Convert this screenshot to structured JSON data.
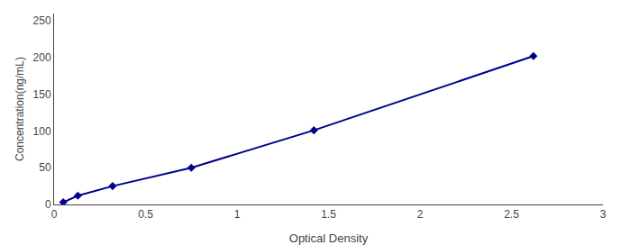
{
  "chart_data": {
    "type": "line",
    "x": [
      0.05,
      0.13,
      0.32,
      0.75,
      1.42,
      2.62
    ],
    "values": [
      3,
      12,
      25,
      50,
      101,
      202
    ],
    "color": "#00008B",
    "marker": "diamond",
    "line_style": "solid",
    "xlabel": "Optical Density",
    "ylabel": "Concentration(ng/mL)",
    "xlim": [
      0,
      3
    ],
    "ylim": [
      0,
      260
    ],
    "xticks": [
      0,
      0.5,
      1,
      1.5,
      2,
      2.5,
      3
    ],
    "yticks": [
      0,
      50,
      100,
      150,
      200,
      250
    ],
    "grid": false
  }
}
